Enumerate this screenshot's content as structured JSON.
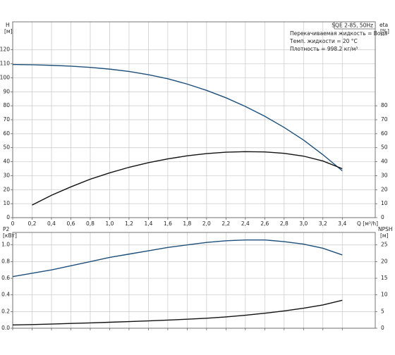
{
  "chart_data": [
    {
      "type": "line",
      "annotations": [
        "SQE 2-85, 50Hz",
        "Перекачиваемая жидкость = Вода",
        "Темп. жидкости = 20 °C",
        "Плотность = 998.2 кг/м³"
      ],
      "ylabel": "H",
      "ylabel_unit": "[м]",
      "y2label": "eta",
      "y2label_unit": "[%]",
      "xlabel": "Q [м³/h]",
      "x": [
        0,
        0.2,
        0.4,
        0.6,
        0.8,
        1.0,
        1.2,
        1.4,
        1.6,
        1.8,
        2.0,
        2.2,
        2.4,
        2.6,
        2.8,
        3.0,
        3.2,
        3.4
      ],
      "xlim": [
        0,
        3.74
      ],
      "xticks": [
        0,
        {
          "value": 0.2,
          "label": "0,2"
        },
        {
          "value": 0.4,
          "label": "0,4"
        },
        {
          "value": 0.6,
          "label": "0,6"
        },
        {
          "value": 0.8,
          "label": "0,8"
        },
        {
          "value": 1.0,
          "label": "1,0"
        },
        {
          "value": 1.2,
          "label": "1,2"
        },
        {
          "value": 1.4,
          "label": "1,4"
        },
        {
          "value": 1.6,
          "label": "1,6"
        },
        {
          "value": 1.8,
          "label": "1,8"
        },
        {
          "value": 2.0,
          "label": "2,0"
        },
        {
          "value": 2.2,
          "label": "2,2"
        },
        {
          "value": 2.4,
          "label": "2,4"
        },
        {
          "value": 2.6,
          "label": "2,6"
        },
        {
          "value": 2.8,
          "label": "2,8"
        },
        {
          "value": 3.0,
          "label": "3,0"
        },
        {
          "value": 3.2,
          "label": "3,2"
        },
        {
          "value": 3.4,
          "label": "3,4"
        }
      ],
      "ylim": [
        0,
        140
      ],
      "yticks": [
        0,
        10,
        20,
        30,
        40,
        50,
        60,
        70,
        80,
        90,
        100,
        110,
        120
      ],
      "y2lim": [
        0,
        140
      ],
      "y2ticks": [
        0,
        10,
        20,
        30,
        40,
        50,
        60,
        70,
        80
      ],
      "grid": true,
      "series": [
        {
          "name": "H",
          "color": "#1d4f7a",
          "values": [
            109.5,
            109.3,
            108.9,
            108.3,
            107.4,
            106.2,
            104.5,
            102.2,
            99.3,
            95.5,
            91,
            85.7,
            79.5,
            72.5,
            64.5,
            55.5,
            45,
            33.5
          ]
        },
        {
          "name": "eta",
          "color": "#111111",
          "axis": "y2",
          "values": [
            null,
            9,
            16,
            22,
            27.5,
            32,
            36,
            39.3,
            42,
            44.2,
            45.8,
            46.8,
            47.2,
            47,
            46,
            44,
            40.5,
            35
          ]
        }
      ]
    },
    {
      "type": "line",
      "ylabel": "P2",
      "ylabel_unit": "[кВт]",
      "y2label": "NPSH",
      "y2label_unit": "[м]",
      "x": [
        0,
        0.2,
        0.4,
        0.6,
        0.8,
        1.0,
        1.2,
        1.4,
        1.6,
        1.8,
        2.0,
        2.2,
        2.4,
        2.6,
        2.8,
        3.0,
        3.2,
        3.4
      ],
      "xlim": [
        0,
        3.74
      ],
      "ylim": [
        0,
        1.15
      ],
      "yticks": [
        {
          "value": 0,
          "label": "0.0"
        },
        0.2,
        0.4,
        0.6,
        0.8,
        {
          "value": 1,
          "label": "1.0"
        }
      ],
      "y2lim": [
        0,
        28.75
      ],
      "y2ticks": [
        0,
        5,
        10,
        15,
        20,
        25
      ],
      "grid": true,
      "series": [
        {
          "name": "P2",
          "color": "#1d4f7a",
          "values": [
            0.62,
            0.66,
            0.7,
            0.75,
            0.8,
            0.85,
            0.89,
            0.93,
            0.97,
            1.0,
            1.03,
            1.05,
            1.06,
            1.06,
            1.04,
            1.01,
            0.96,
            0.88
          ]
        },
        {
          "name": "NPSH",
          "color": "#111111",
          "axis": "y2",
          "values": [
            1.0,
            1.1,
            1.25,
            1.45,
            1.6,
            1.8,
            2.0,
            2.2,
            2.45,
            2.7,
            3.0,
            3.4,
            3.9,
            4.5,
            5.2,
            6.0,
            7.0,
            8.4
          ]
        }
      ]
    }
  ]
}
